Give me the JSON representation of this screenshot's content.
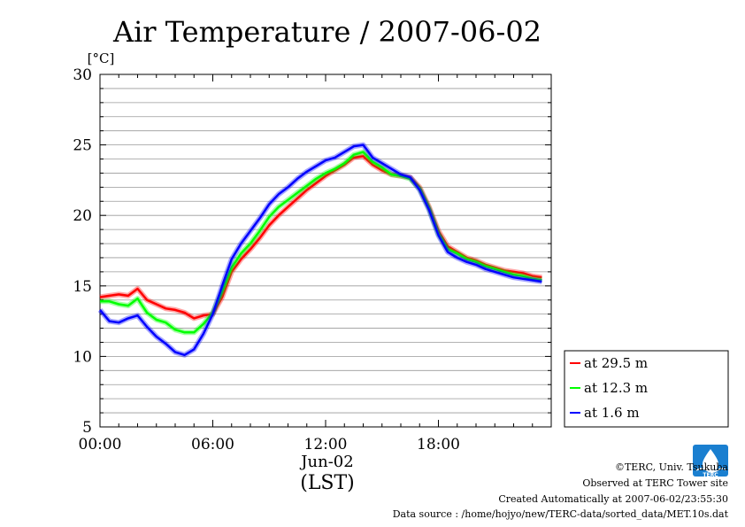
{
  "chart_data": {
    "type": "line",
    "title": "Air Temperature / 2007-06-02",
    "yunit": "[°C]",
    "ylim": [
      5,
      30
    ],
    "yticks": [
      "5",
      "10",
      "15",
      "20",
      "25",
      "30"
    ],
    "xlim": [
      0,
      24
    ],
    "xticks": [
      "00:00",
      "06:00",
      "12:00",
      "18:00"
    ],
    "xdate": "Jun-02",
    "xlabel": "(LST)",
    "grid": true,
    "legend_position": "right",
    "x": [
      0,
      0.5,
      1,
      1.5,
      2,
      2.5,
      3,
      3.5,
      4,
      4.5,
      5,
      5.5,
      6,
      6.5,
      7,
      7.5,
      8,
      8.5,
      9,
      9.5,
      10,
      10.5,
      11,
      11.5,
      12,
      12.5,
      13,
      13.5,
      14,
      14.5,
      15,
      15.5,
      16,
      16.5,
      17,
      17.5,
      18,
      18.5,
      19,
      19.5,
      20,
      20.5,
      21,
      21.5,
      22,
      22.5,
      23,
      23.5
    ],
    "series": [
      {
        "name": "at 29.5 m",
        "color": "#ff0000",
        "values": [
          14.2,
          14.3,
          14.4,
          14.3,
          14.8,
          14.0,
          13.7,
          13.4,
          13.3,
          13.1,
          12.7,
          12.9,
          13.0,
          14.2,
          16.0,
          16.9,
          17.6,
          18.4,
          19.3,
          20.0,
          20.6,
          21.2,
          21.8,
          22.3,
          22.8,
          23.2,
          23.6,
          24.1,
          24.2,
          23.6,
          23.2,
          22.9,
          22.8,
          22.7,
          22.0,
          20.6,
          18.9,
          17.8,
          17.4,
          17.0,
          16.8,
          16.5,
          16.3,
          16.1,
          16.0,
          15.9,
          15.7,
          15.6
        ]
      },
      {
        "name": "at 12.3 m",
        "color": "#00ff00",
        "values": [
          13.9,
          13.9,
          13.7,
          13.6,
          14.1,
          13.1,
          12.6,
          12.4,
          11.9,
          11.7,
          11.7,
          12.3,
          13.1,
          14.6,
          16.3,
          17.3,
          18.0,
          18.9,
          19.9,
          20.6,
          21.1,
          21.6,
          22.1,
          22.6,
          23.0,
          23.3,
          23.7,
          24.3,
          24.5,
          23.8,
          23.4,
          22.9,
          22.8,
          22.6,
          21.9,
          20.5,
          18.7,
          17.6,
          17.3,
          16.9,
          16.7,
          16.4,
          16.2,
          16.0,
          15.8,
          15.7,
          15.5,
          15.4
        ]
      },
      {
        "name": "at 1.6 m",
        "color": "#0000ff",
        "values": [
          13.3,
          12.5,
          12.4,
          12.7,
          12.9,
          12.1,
          11.4,
          10.9,
          10.3,
          10.1,
          10.5,
          11.6,
          13.0,
          15.0,
          16.9,
          18.0,
          18.9,
          19.8,
          20.8,
          21.5,
          22.0,
          22.6,
          23.1,
          23.5,
          23.9,
          24.1,
          24.5,
          24.9,
          25.0,
          24.1,
          23.7,
          23.3,
          22.9,
          22.7,
          21.8,
          20.4,
          18.6,
          17.4,
          17.0,
          16.7,
          16.5,
          16.2,
          16.0,
          15.8,
          15.6,
          15.5,
          15.4,
          15.3
        ]
      }
    ]
  },
  "footer": {
    "copyright": "©TERC, Univ. Tsukuba",
    "site": "Observed at TERC Tower site",
    "created": "Created Automatically at 2007-06-02/23:55:30",
    "source": "Data source : /home/hojyo/new/TERC-data/sorted_data/MET.10s.dat",
    "logo_text": "TERC"
  }
}
